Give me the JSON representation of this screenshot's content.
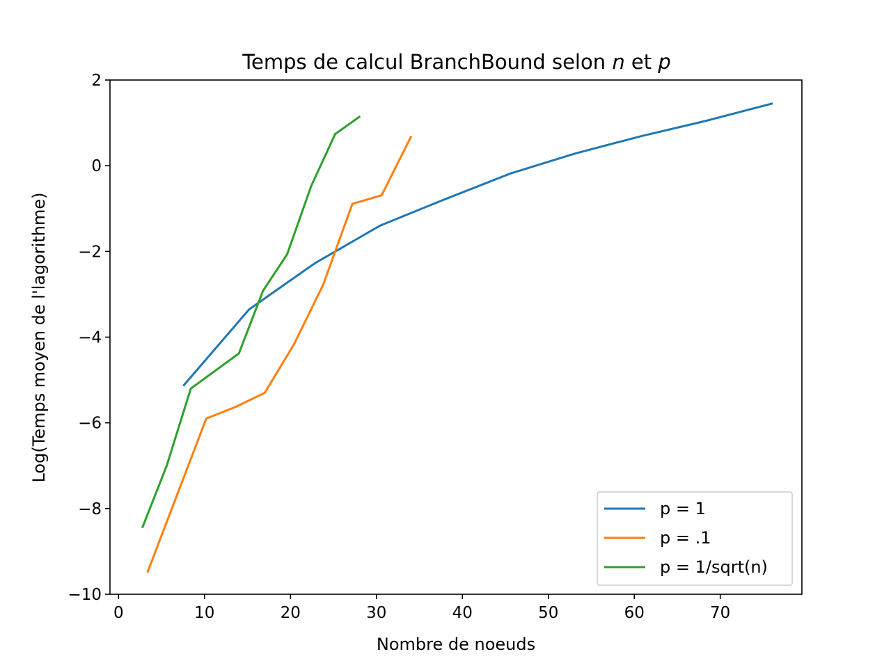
{
  "chart_data": {
    "type": "line",
    "title": {
      "prefix": "Temps de calcul BranchBound selon ",
      "var1": "n",
      "middle": " et ",
      "var2": "p"
    },
    "xlabel": "Nombre de noeuds",
    "ylabel": "Log(Temps moyen de l'lagorithme)",
    "xlim": [
      -1,
      79.5
    ],
    "ylim": [
      -10,
      2
    ],
    "xticks": [
      0,
      10,
      20,
      30,
      40,
      50,
      60,
      70
    ],
    "xtick_labels": [
      "0",
      "10",
      "20",
      "30",
      "40",
      "50",
      "60",
      "70"
    ],
    "yticks": [
      2,
      0,
      -2,
      -4,
      -6,
      -8,
      -10
    ],
    "ytick_labels": [
      "2",
      "0",
      "−2",
      "−4",
      "−6",
      "−8",
      "−10"
    ],
    "grid": false,
    "legend_position": "lower right",
    "series": [
      {
        "name": "p = 1",
        "color": "#1f77b4",
        "x": [
          7.6,
          15.2,
          22.8,
          30.4,
          38.0,
          45.6,
          53.2,
          60.8,
          68.4,
          76.0
        ],
        "y": [
          -5.12,
          -3.35,
          -2.28,
          -1.4,
          -0.78,
          -0.18,
          0.29,
          0.69,
          1.05,
          1.45
        ]
      },
      {
        "name": "p = .1",
        "color": "#ff7f0e",
        "x": [
          3.4,
          10.2,
          13.6,
          17.0,
          20.4,
          23.8,
          27.2,
          30.6,
          34.0
        ],
        "y": [
          -9.47,
          -5.9,
          -5.63,
          -5.3,
          -4.17,
          -2.78,
          -0.89,
          -0.69,
          0.67
        ]
      },
      {
        "name": "p = 1/sqrt(n)",
        "color": "#2ca02c",
        "x": [
          2.8,
          5.6,
          8.4,
          14.0,
          16.8,
          19.6,
          22.4,
          25.2,
          28.0
        ],
        "y": [
          -8.43,
          -7.0,
          -5.2,
          -4.38,
          -2.92,
          -2.07,
          -0.48,
          0.74,
          1.14
        ]
      }
    ]
  }
}
